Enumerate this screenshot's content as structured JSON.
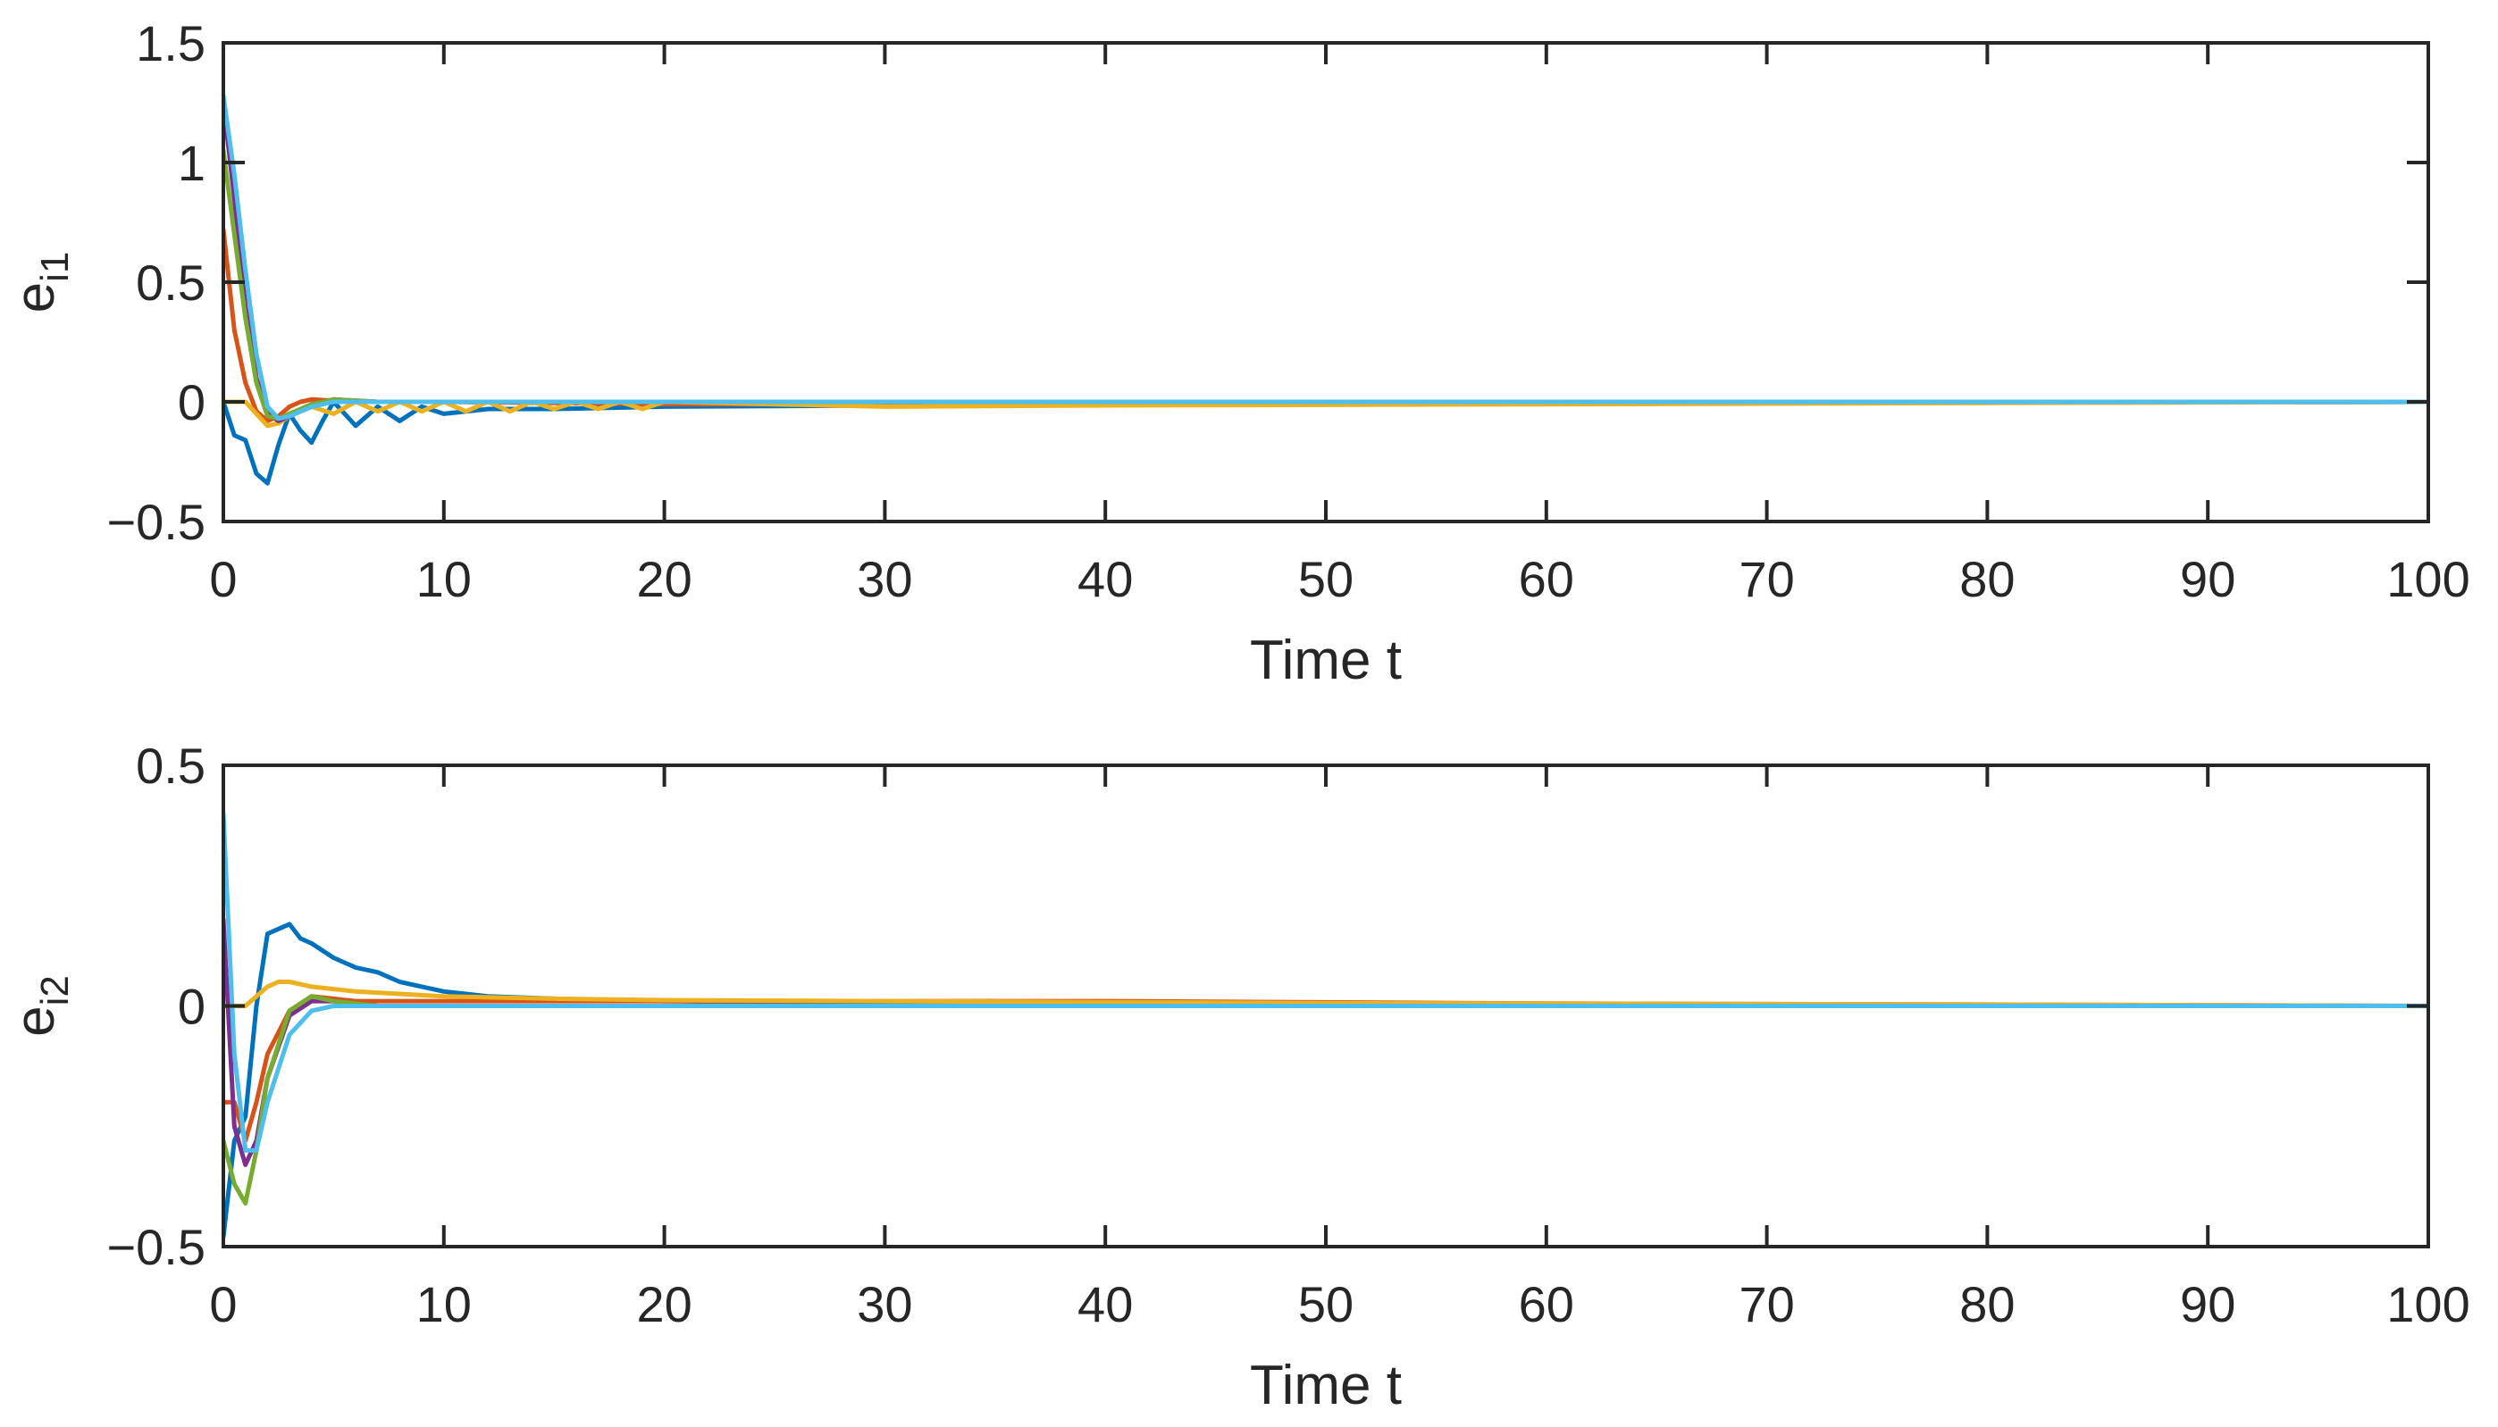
{
  "chart_data": [
    {
      "type": "line",
      "title": "",
      "xlabel": "Time t",
      "ylabel": {
        "base": "e",
        "subscript": "i1"
      },
      "xlim": [
        0,
        100
      ],
      "ylim": [
        -0.5,
        1.5
      ],
      "xticks": [
        "0",
        "10",
        "20",
        "30",
        "40",
        "50",
        "60",
        "70",
        "80",
        "90",
        "100"
      ],
      "yticks": [
        "−0.5",
        "0",
        "0.5",
        "1",
        "1.5"
      ],
      "ytick_values": [
        -0.5,
        0,
        0.5,
        1,
        1.5
      ],
      "grid": false,
      "series": [
        {
          "color": "#0072BD",
          "x": [
            0,
            0.5,
            1,
            1.5,
            2,
            2.5,
            3,
            3.5,
            4,
            4.5,
            5,
            6,
            7,
            8,
            9,
            10,
            12,
            15,
            20,
            30,
            40,
            60,
            100
          ],
          "values": [
            0,
            -0.14,
            -0.16,
            -0.3,
            -0.34,
            -0.18,
            -0.05,
            -0.12,
            -0.17,
            -0.08,
            0,
            -0.1,
            -0.02,
            -0.08,
            -0.02,
            -0.05,
            -0.03,
            -0.03,
            -0.02,
            -0.015,
            -0.01,
            -0.005,
            0
          ]
        },
        {
          "color": "#D95319",
          "x": [
            0,
            0.5,
            1,
            1.5,
            2,
            2.5,
            3,
            3.5,
            4,
            5,
            7,
            10,
            20,
            40,
            100
          ],
          "values": [
            0.72,
            0.3,
            0.08,
            -0.04,
            -0.08,
            -0.06,
            -0.02,
            0,
            0.01,
            0.005,
            0,
            0,
            -0.01,
            -0.01,
            0
          ]
        },
        {
          "color": "#EDB120",
          "x": [
            0,
            1,
            1.5,
            2,
            2.5,
            3,
            4,
            5,
            6,
            7,
            8,
            9,
            10,
            11,
            12,
            13,
            14,
            15,
            16,
            17,
            18,
            19,
            20,
            30,
            40,
            60,
            100
          ],
          "values": [
            0,
            0,
            -0.05,
            -0.1,
            -0.09,
            -0.06,
            -0.02,
            -0.05,
            0,
            -0.04,
            0,
            -0.04,
            0,
            -0.04,
            0,
            -0.04,
            0,
            -0.03,
            0,
            -0.03,
            0,
            -0.03,
            0,
            -0.02,
            -0.015,
            -0.01,
            0
          ]
        },
        {
          "color": "#7E2F8E",
          "x": [
            0,
            0.5,
            1,
            1.5,
            2,
            2.5,
            3,
            4,
            5,
            7,
            10,
            30,
            100
          ],
          "values": [
            1.25,
            0.85,
            0.4,
            0.1,
            -0.05,
            -0.08,
            -0.06,
            -0.01,
            0.01,
            0,
            0,
            0,
            0
          ]
        },
        {
          "color": "#77AC30",
          "x": [
            0,
            0.5,
            1,
            1.5,
            2,
            2.5,
            3,
            4,
            5,
            7,
            10,
            30,
            100
          ],
          "values": [
            1.05,
            0.7,
            0.35,
            0.08,
            -0.06,
            -0.07,
            -0.05,
            -0.01,
            0.01,
            0,
            0,
            0,
            0
          ]
        },
        {
          "color": "#4DBEEE",
          "x": [
            0,
            0.5,
            1,
            1.5,
            2,
            2.5,
            3,
            4,
            5,
            7,
            10,
            30,
            100
          ],
          "values": [
            1.28,
            0.95,
            0.55,
            0.2,
            -0.02,
            -0.07,
            -0.06,
            -0.02,
            0,
            0,
            0,
            0,
            0
          ]
        }
      ]
    },
    {
      "type": "line",
      "title": "",
      "xlabel": "Time t",
      "ylabel": {
        "base": "e",
        "subscript": "i2"
      },
      "xlim": [
        0,
        100
      ],
      "ylim": [
        -0.5,
        0.5
      ],
      "xticks": [
        "0",
        "10",
        "20",
        "30",
        "40",
        "50",
        "60",
        "70",
        "80",
        "90",
        "100"
      ],
      "yticks": [
        "−0.5",
        "0",
        "0.5"
      ],
      "ytick_values": [
        -0.5,
        0,
        0.5
      ],
      "grid": false,
      "series": [
        {
          "color": "#0072BD",
          "x": [
            0,
            0.5,
            1,
            1.5,
            2,
            2.5,
            3,
            3.5,
            4,
            5,
            6,
            7,
            8,
            9,
            10,
            12,
            15,
            20,
            30,
            50,
            100
          ],
          "values": [
            -0.48,
            -0.28,
            -0.23,
            0,
            0.15,
            0.16,
            0.17,
            0.14,
            0.13,
            0.1,
            0.08,
            0.07,
            0.05,
            0.04,
            0.03,
            0.02,
            0.015,
            0.01,
            0.005,
            0,
            0
          ]
        },
        {
          "color": "#D95319",
          "x": [
            0,
            0.5,
            1,
            1.5,
            2,
            3,
            4,
            5,
            6,
            8,
            10,
            20,
            30,
            40,
            60,
            80,
            100
          ],
          "values": [
            -0.2,
            -0.2,
            -0.28,
            -0.2,
            -0.1,
            -0.01,
            0.02,
            0.015,
            0.01,
            0.01,
            0.01,
            0.01,
            0.01,
            0.01,
            0.005,
            0.003,
            0
          ]
        },
        {
          "color": "#EDB120",
          "x": [
            0,
            1,
            1.5,
            2,
            2.5,
            3,
            4,
            5,
            6,
            8,
            10,
            15,
            20,
            30,
            40,
            50,
            60,
            80,
            100
          ],
          "values": [
            0,
            0,
            0.02,
            0.04,
            0.05,
            0.05,
            0.04,
            0.035,
            0.03,
            0.025,
            0.02,
            0.015,
            0.012,
            0.01,
            0.008,
            0.006,
            0.005,
            0.003,
            0
          ]
        },
        {
          "color": "#7E2F8E",
          "x": [
            0,
            0.5,
            1,
            1.5,
            2,
            3,
            4,
            5,
            7,
            10,
            30,
            100
          ],
          "values": [
            0.18,
            -0.25,
            -0.33,
            -0.28,
            -0.15,
            -0.02,
            0.01,
            0.01,
            0,
            0,
            0,
            0
          ]
        },
        {
          "color": "#77AC30",
          "x": [
            0,
            0.5,
            1,
            1.5,
            2,
            3,
            4,
            5,
            7,
            10,
            30,
            100
          ],
          "values": [
            -0.28,
            -0.37,
            -0.41,
            -0.3,
            -0.15,
            -0.01,
            0.02,
            0.01,
            0,
            0,
            0,
            0
          ]
        },
        {
          "color": "#4DBEEE",
          "x": [
            0,
            0.5,
            1,
            1.5,
            2,
            3,
            4,
            5,
            7,
            10,
            30,
            100
          ],
          "values": [
            0.4,
            -0.1,
            -0.3,
            -0.3,
            -0.2,
            -0.06,
            -0.01,
            0,
            0,
            0,
            0,
            0
          ]
        }
      ]
    }
  ]
}
